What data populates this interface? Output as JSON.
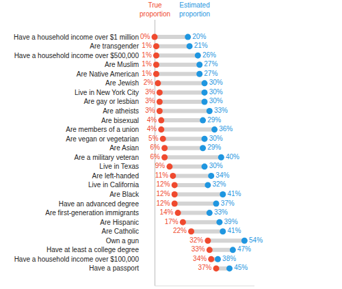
{
  "chart_data": {
    "type": "dumbbell",
    "orientation": "horizontal",
    "categories": [
      "Have a household income over $1 million",
      "Are transgender",
      "Have a household income over $500,000",
      "Are Muslim",
      "Are Native American",
      "Are Jewish",
      "Live in New York City",
      "Are gay or lesbian",
      "Are atheists",
      "Are bisexual",
      "Are members of a union",
      "Are vegan or vegetarian",
      "Are Asian",
      "Are a military veteran",
      "Live in Texas",
      "Are left-handed",
      "Live in California",
      "Are Black",
      "Have an advanced degree",
      "Are first-generation immigrants",
      "Are Hispanic",
      "Are Catholic",
      "Own a gun",
      "Have at least a college degree",
      "Have a household income over $100,000",
      "Have a passport"
    ],
    "series": [
      {
        "name": "True proportion",
        "color": "#ef4a2f",
        "values": [
          0,
          1,
          1,
          1,
          1,
          2,
          3,
          3,
          3,
          4,
          4,
          5,
          6,
          6,
          9,
          11,
          12,
          12,
          12,
          14,
          17,
          22,
          32,
          33,
          34,
          37
        ],
        "value_labels": [
          "0%",
          "1%",
          "1%",
          "1%",
          "1%",
          "2%",
          "3%",
          "3%",
          "3%",
          "4%",
          "4%",
          "5%",
          "6%",
          "6%",
          "9%",
          "11%",
          "12%",
          "12%",
          "12%",
          "14%",
          "17%",
          "22%",
          "32%",
          "33%",
          "34%",
          "37%"
        ]
      },
      {
        "name": "Estimated proportion",
        "color": "#1f96e0",
        "values": [
          20,
          21,
          26,
          27,
          27,
          30,
          30,
          30,
          33,
          29,
          36,
          30,
          29,
          40,
          30,
          34,
          32,
          41,
          37,
          33,
          39,
          41,
          54,
          47,
          38,
          45
        ],
        "value_labels": [
          "20%",
          "21%",
          "26%",
          "27%",
          "27%",
          "30%",
          "30%",
          "30%",
          "33%",
          "29%",
          "36%",
          "30%",
          "29%",
          "40%",
          "30%",
          "34%",
          "32%",
          "41%",
          "37%",
          "33%",
          "39%",
          "41%",
          "54%",
          "47%",
          "38%",
          "45%"
        ]
      }
    ],
    "xlim": [
      0,
      60
    ],
    "tick_labels": "y",
    "data_labels": true,
    "legend": "top",
    "grid": false
  }
}
